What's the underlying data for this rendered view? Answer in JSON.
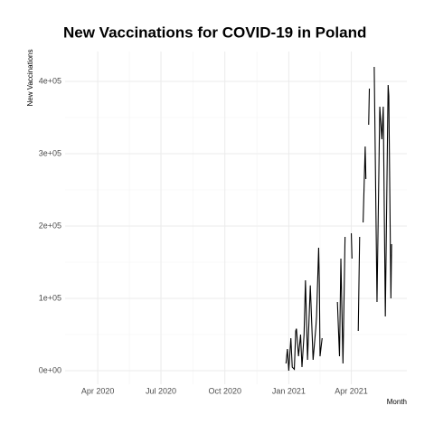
{
  "chart_data": {
    "type": "line",
    "title": "New Vaccinations for COVID-19 in Poland",
    "x_label": "Month",
    "y_label": "New Vaccinations",
    "xlim": [
      "2020-02-14",
      "2021-06-20"
    ],
    "ylim": [
      -18750,
      441250
    ],
    "xticks": [
      {
        "value": "2020-04-01",
        "label": "Apr 2020"
      },
      {
        "value": "2020-07-01",
        "label": "Jul 2020"
      },
      {
        "value": "2020-10-01",
        "label": "Oct 2020"
      },
      {
        "value": "2021-01-01",
        "label": "Jan 2021"
      },
      {
        "value": "2021-04-01",
        "label": "Apr 2021"
      }
    ],
    "yticks": [
      {
        "value": 0,
        "label": "0e+00"
      },
      {
        "value": 100000,
        "label": "1e+05"
      },
      {
        "value": 200000,
        "label": "2e+05"
      },
      {
        "value": 300000,
        "label": "3e+05"
      },
      {
        "value": 400000,
        "label": "4e+05"
      }
    ],
    "grid": true,
    "x": [
      "2020-12-28",
      "2020-12-30",
      "2021-01-01",
      "2021-01-04",
      "2021-01-06",
      "2021-01-09",
      "2021-01-11",
      "2021-01-12",
      "2021-01-15",
      "2021-01-18",
      "2021-01-20",
      "2021-01-23",
      "2021-01-25",
      "2021-01-28",
      "2021-02-01",
      "2021-02-05",
      "2021-02-09",
      "2021-02-10",
      "2021-02-13",
      "2021-02-14",
      "2021-02-15",
      "2021-02-18",
      "2021-02-19",
      "2021-03-12",
      "2021-03-15",
      "2021-03-17",
      "2021-03-20",
      "2021-03-23",
      "2021-03-24",
      "2021-04-01",
      "2021-04-02",
      "2021-04-03",
      "2021-04-11",
      "2021-04-13",
      "2021-04-14",
      "2021-04-18",
      "2021-04-21",
      "2021-04-22",
      "2021-04-23",
      "2021-04-26",
      "2021-04-27",
      "2021-04-28",
      "2021-05-04",
      "2021-05-08",
      "2021-05-12",
      "2021-05-15",
      "2021-05-17",
      "2021-05-20",
      "2021-05-24",
      "2021-05-25",
      "2021-05-28",
      "2021-05-29"
    ],
    "series": [
      {
        "name": "New Vaccinations",
        "color": "#000000",
        "values": [
          10000,
          30000,
          0,
          45000,
          5000,
          2000,
          55000,
          58000,
          20000,
          50000,
          5000,
          50000,
          125000,
          15000,
          118000,
          15000,
          60000,
          75000,
          170000,
          120000,
          20000,
          45000,
          null,
          95000,
          20000,
          155000,
          10000,
          185000,
          null,
          190000,
          155000,
          null,
          55000,
          185000,
          null,
          205000,
          310000,
          265000,
          null,
          340000,
          390000,
          null,
          420000,
          95000,
          365000,
          320000,
          365000,
          75000,
          395000,
          380000,
          100000,
          175000
        ]
      }
    ]
  }
}
